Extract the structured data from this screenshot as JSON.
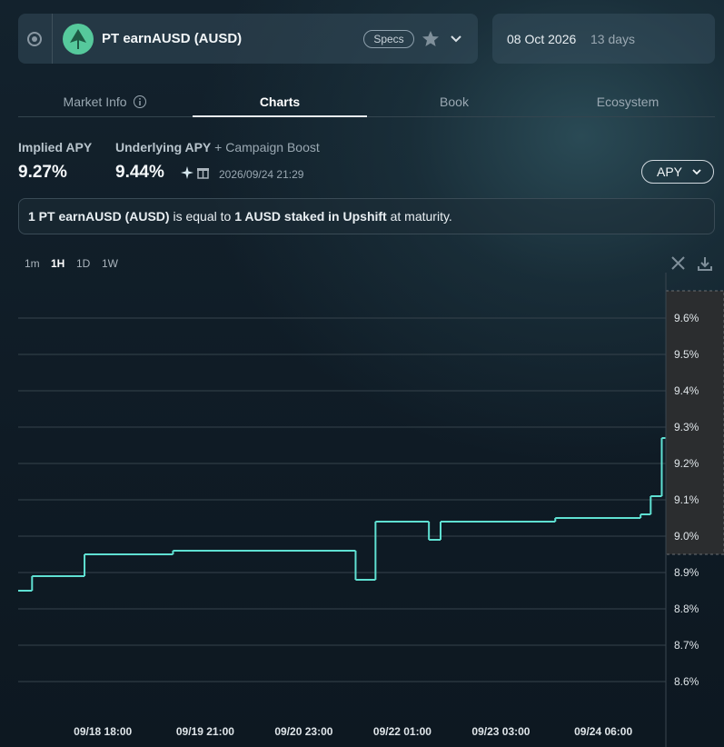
{
  "header": {
    "title": "PT earnAUSD (AUSD)",
    "specs": "Specs",
    "maturity_date": "08 Oct 2026",
    "days_left": "13 days"
  },
  "tabs": [
    "Market Info",
    "Charts",
    "Book",
    "Ecosystem"
  ],
  "stats": {
    "implied_label": "Implied APY",
    "implied_value": "9.27%",
    "underlying_label": "Underlying APY",
    "boost_label": "+ Campaign Boost",
    "underlying_value": "9.44%",
    "timestamp": "2026/09/24 21:29"
  },
  "apy_button": "APY",
  "info": [
    "1 PT earnAUSD (AUSD)",
    " is equal to ",
    "1 AUSD staked in Upshift",
    " at maturity."
  ],
  "intervals": [
    "1m",
    "1H",
    "1D",
    "1W"
  ],
  "chart_data": {
    "type": "line",
    "drawstyle": "steps-post",
    "color": "#5fe0d2",
    "grid": true,
    "x": [
      "09/17 19:40",
      "09/17 23:20",
      "09/18 13:10",
      "09/19 12:30",
      "09/21 12:40",
      "09/21 17:55",
      "09/22 08:00",
      "09/22 11:05",
      "09/23 17:20",
      "09/24 15:50",
      "09/24 18:30",
      "09/24 21:25"
    ],
    "values": [
      8.85,
      8.89,
      8.95,
      8.96,
      8.88,
      9.04,
      8.99,
      9.04,
      9.05,
      9.06,
      9.11,
      9.27
    ],
    "xlim": [
      "09/17 19:40",
      "09/24 22:30"
    ],
    "xticks": [
      "09/18 18:00",
      "09/19 21:00",
      "09/20 23:00",
      "09/22 01:00",
      "09/23 03:00",
      "09/24 06:00"
    ],
    "ylim": [
      8.5,
      9.675
    ],
    "yticks": [
      {
        "value": 8.6,
        "label": "8.6%"
      },
      {
        "value": 8.7,
        "label": "8.7%"
      },
      {
        "value": 8.8,
        "label": "8.8%"
      },
      {
        "value": 8.9,
        "label": "8.9%"
      },
      {
        "value": 9.0,
        "label": "9.0%"
      },
      {
        "value": 9.1,
        "label": "9.1%"
      },
      {
        "value": 9.2,
        "label": "9.2%"
      },
      {
        "value": 9.3,
        "label": "9.3%"
      },
      {
        "value": 9.4,
        "label": "9.4%"
      },
      {
        "value": 9.5,
        "label": "9.5%"
      },
      {
        "value": 9.6,
        "label": "9.6%"
      }
    ]
  }
}
